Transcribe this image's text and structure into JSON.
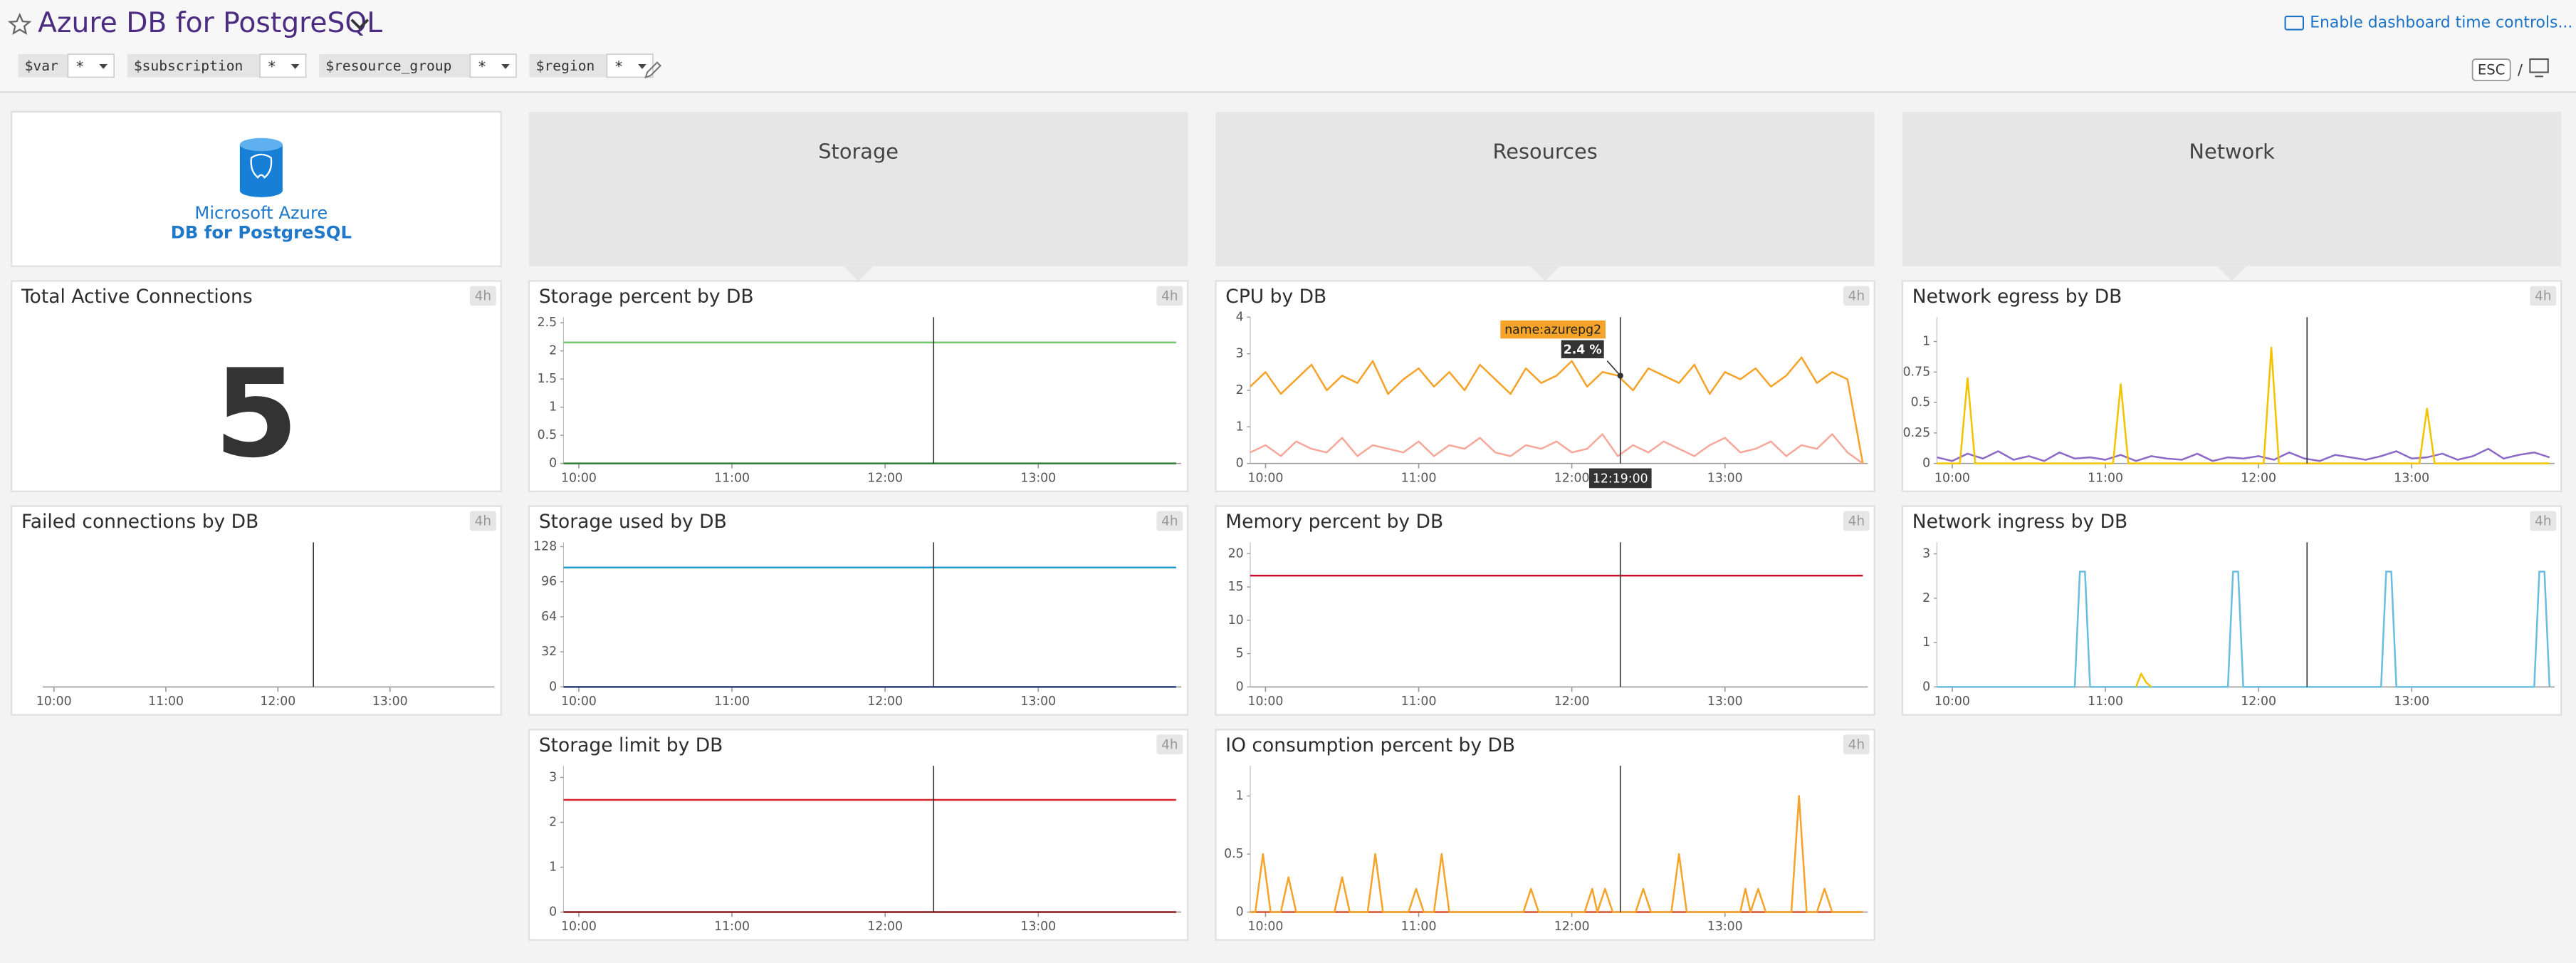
{
  "header": {
    "title": "Azure DB for PostgreSQL",
    "time_controls": "Enable dashboard time controls...",
    "esc": "ESC",
    "slash": "/"
  },
  "variables": [
    {
      "name": "$var",
      "value": "*"
    },
    {
      "name": "$subscription",
      "value": "*"
    },
    {
      "name": "$resource_group",
      "value": "*"
    },
    {
      "name": "$region",
      "value": "*"
    }
  ],
  "logo": {
    "line1": "Microsoft Azure",
    "line2": "DB for PostgreSQL"
  },
  "groups": [
    "Storage",
    "Resources",
    "Network"
  ],
  "widgets": [
    {
      "title": "Total Active Connections",
      "badge": "4h",
      "value": 5
    },
    {
      "title": "Failed connections by DB",
      "badge": "4h",
      "chart": {
        "type": "line",
        "xlim": [
          594,
          836
        ],
        "xticks": [
          {
            "value": 600,
            "label": "10:00"
          },
          {
            "value": 660,
            "label": "11:00"
          },
          {
            "value": 720,
            "label": "12:00"
          },
          {
            "value": 780,
            "label": "13:00"
          }
        ],
        "series": []
      }
    },
    {
      "title": "Storage percent by DB",
      "badge": "4h",
      "chart": {
        "type": "line",
        "xlim": [
          594,
          836
        ],
        "xticks": [
          {
            "value": 600,
            "label": "10:00"
          },
          {
            "value": 660,
            "label": "11:00"
          },
          {
            "value": 720,
            "label": "12:00"
          },
          {
            "value": 780,
            "label": "13:00"
          }
        ],
        "ylim": [
          0,
          2.6
        ],
        "yticks": [
          0,
          0.5,
          1,
          1.5,
          2,
          2.5
        ],
        "series": [
          {
            "color": "#74c86f",
            "x": [
              594,
              834
            ],
            "values": [
              2.15,
              2.15
            ]
          },
          {
            "color": "#2f7d32",
            "x": [
              594,
              834
            ],
            "values": [
              0,
              0
            ]
          }
        ]
      }
    },
    {
      "title": "Storage used by DB",
      "badge": "4h",
      "chart": {
        "type": "line",
        "xlim": [
          594,
          836
        ],
        "xticks": [
          {
            "value": 600,
            "label": "10:00"
          },
          {
            "value": 660,
            "label": "11:00"
          },
          {
            "value": 720,
            "label": "12:00"
          },
          {
            "value": 780,
            "label": "13:00"
          }
        ],
        "ylim": [
          0,
          132
        ],
        "yticks": [
          0,
          32,
          64,
          96,
          128
        ],
        "series": [
          {
            "color": "#1f9bd1",
            "x": [
              594,
              834
            ],
            "values": [
              109,
              109
            ]
          },
          {
            "color": "#2c3e7a",
            "x": [
              594,
              834
            ],
            "values": [
              0,
              0
            ]
          }
        ]
      }
    },
    {
      "title": "Storage limit by DB",
      "badge": "4h",
      "chart": {
        "type": "line",
        "xlim": [
          594,
          836
        ],
        "xticks": [
          {
            "value": 600,
            "label": "10:00"
          },
          {
            "value": 660,
            "label": "11:00"
          },
          {
            "value": 720,
            "label": "12:00"
          },
          {
            "value": 780,
            "label": "13:00"
          }
        ],
        "ylim": [
          0,
          3.26
        ],
        "yticks": [
          0,
          1,
          2,
          3
        ],
        "series": [
          {
            "color": "#d9262b",
            "x": [
              594,
              834
            ],
            "values": [
              2.5,
              2.5
            ]
          },
          {
            "color": "#8a1a1a",
            "x": [
              594,
              834
            ],
            "values": [
              0,
              0
            ]
          }
        ]
      }
    },
    {
      "title": "CPU by DB",
      "badge": "4h",
      "tooltip": {
        "series_name": "name:azurepg2",
        "value": "2.4 %",
        "time": "12:19:00"
      },
      "chart": {
        "type": "line",
        "xlim": [
          594,
          836
        ],
        "xticks": [
          {
            "value": 600,
            "label": "10:00"
          },
          {
            "value": 660,
            "label": "11:00"
          },
          {
            "value": 720,
            "label": "12:00"
          },
          {
            "value": 780,
            "label": "13:00"
          }
        ],
        "ylim": [
          0,
          4
        ],
        "yticks": [
          0,
          1,
          2,
          3,
          4
        ],
        "series": [
          {
            "color": "#f6a99b",
            "x": [
              594,
              600,
              606,
              612,
              618,
              624,
              630,
              636,
              642,
              648,
              654,
              660,
              666,
              672,
              678,
              684,
              690,
              696,
              702,
              708,
              714,
              720,
              726,
              732,
              738,
              744,
              750,
              756,
              762,
              768,
              774,
              780,
              786,
              792,
              798,
              804,
              810,
              816,
              822,
              828,
              834
            ],
            "values": [
              0.3,
              0.5,
              0.2,
              0.6,
              0.4,
              0.3,
              0.7,
              0.2,
              0.5,
              0.4,
              0.3,
              0.6,
              0.2,
              0.5,
              0.4,
              0.7,
              0.3,
              0.2,
              0.5,
              0.4,
              0.6,
              0.3,
              0.4,
              0.8,
              0.2,
              0.5,
              0.3,
              0.6,
              0.4,
              0.2,
              0.5,
              0.7,
              0.3,
              0.4,
              0.6,
              0.2,
              0.5,
              0.4,
              0.8,
              0.3,
              0
            ]
          },
          {
            "color": "#f5a32a",
            "x": [
              594,
              600,
              606,
              612,
              618,
              624,
              630,
              636,
              642,
              648,
              654,
              660,
              666,
              672,
              678,
              684,
              690,
              696,
              702,
              708,
              714,
              720,
              726,
              732,
              738,
              744,
              750,
              756,
              762,
              768,
              774,
              780,
              786,
              792,
              798,
              804,
              810,
              816,
              822,
              828,
              834
            ],
            "values": [
              2.1,
              2.5,
              1.9,
              2.3,
              2.7,
              2.0,
              2.4,
              2.2,
              2.8,
              1.9,
              2.3,
              2.6,
              2.1,
              2.5,
              2.0,
              2.7,
              2.3,
              1.9,
              2.6,
              2.2,
              2.4,
              2.8,
              2.1,
              2.5,
              2.4,
              2.0,
              2.6,
              2.4,
              2.2,
              2.7,
              1.9,
              2.5,
              2.3,
              2.6,
              2.1,
              2.4,
              2.9,
              2.2,
              2.5,
              2.3,
              0
            ]
          }
        ]
      }
    },
    {
      "title": "Memory percent by DB",
      "badge": "4h",
      "chart": {
        "type": "line",
        "xlim": [
          594,
          836
        ],
        "xticks": [
          {
            "value": 600,
            "label": "10:00"
          },
          {
            "value": 660,
            "label": "11:00"
          },
          {
            "value": 720,
            "label": "12:00"
          },
          {
            "value": 780,
            "label": "13:00"
          }
        ],
        "ylim": [
          0,
          21.7
        ],
        "yticks": [
          0,
          5,
          10,
          15,
          20
        ],
        "series": [
          {
            "color": "#c8102e",
            "x": [
              594,
              834
            ],
            "values": [
              16.7,
              16.7
            ]
          }
        ]
      }
    },
    {
      "title": "IO consumption percent by DB",
      "badge": "4h",
      "chart": {
        "type": "line",
        "xlim": [
          594,
          836
        ],
        "xticks": [
          {
            "value": 600,
            "label": "10:00"
          },
          {
            "value": 660,
            "label": "11:00"
          },
          {
            "value": 720,
            "label": "12:00"
          },
          {
            "value": 780,
            "label": "13:00"
          }
        ],
        "ylim": [
          0,
          1.26
        ],
        "yticks": [
          0,
          0.5,
          1
        ],
        "series": [
          {
            "color": "#d9502a",
            "x": [
              594,
              834
            ],
            "values": [
              0,
              0
            ]
          },
          {
            "color": "#f5a32a",
            "x": [
              594,
              596,
              599,
              602,
              606,
              609,
              612,
              627,
              630,
              633,
              640,
              643,
              646,
              656,
              659,
              662,
              666,
              669,
              672,
              701,
              704,
              707,
              725,
              728,
              730,
              733,
              736,
              745,
              748,
              751,
              759,
              762,
              765,
              786,
              788,
              790,
              793,
              796,
              806,
              809,
              812,
              816,
              819,
              822,
              834
            ],
            "values": [
              0,
              0,
              0.5,
              0,
              0,
              0.3,
              0,
              0,
              0.3,
              0,
              0,
              0.5,
              0,
              0,
              0.2,
              0,
              0,
              0.5,
              0,
              0,
              0.2,
              0,
              0,
              0.2,
              0,
              0.2,
              0,
              0,
              0.2,
              0,
              0,
              0.5,
              0,
              0,
              0.2,
              0,
              0.2,
              0,
              0,
              1,
              0,
              0,
              0.2,
              0,
              0
            ]
          }
        ]
      }
    },
    {
      "title": "Network egress by DB",
      "badge": "4h",
      "chart": {
        "type": "line",
        "xlim": [
          594,
          836
        ],
        "xticks": [
          {
            "value": 600,
            "label": "10:00"
          },
          {
            "value": 660,
            "label": "11:00"
          },
          {
            "value": 720,
            "label": "12:00"
          },
          {
            "value": 780,
            "label": "13:00"
          }
        ],
        "ylim": [
          0,
          1.2
        ],
        "yticks": [
          0,
          0.25,
          0.5,
          0.75,
          1
        ],
        "series": [
          {
            "color": "#8c6bc8",
            "x": [
              594,
              600,
              606,
              612,
              618,
              624,
              630,
              636,
              642,
              648,
              654,
              660,
              666,
              672,
              678,
              684,
              690,
              696,
              702,
              708,
              714,
              720,
              726,
              732,
              738,
              744,
              750,
              756,
              762,
              768,
              774,
              780,
              786,
              792,
              798,
              804,
              810,
              816,
              822,
              828,
              834
            ],
            "values": [
              0.05,
              0.02,
              0.08,
              0.04,
              0.1,
              0.03,
              0.06,
              0.02,
              0.09,
              0.04,
              0.05,
              0.03,
              0.07,
              0.02,
              0.06,
              0.04,
              0.03,
              0.08,
              0.02,
              0.05,
              0.04,
              0.06,
              0.03,
              0.09,
              0.04,
              0.02,
              0.07,
              0.05,
              0.03,
              0.06,
              0.1,
              0.04,
              0.05,
              0.08,
              0.03,
              0.06,
              0.12,
              0.04,
              0.07,
              0.09,
              0.05
            ]
          },
          {
            "color": "#f2c400",
            "x": [
              594,
              603,
              606,
              609,
              663,
              666,
              669,
              722,
              725,
              728,
              783,
              786,
              789,
              834
            ],
            "values": [
              0,
              0,
              0.7,
              0,
              0,
              0.65,
              0,
              0,
              0.95,
              0,
              0,
              0.45,
              0,
              0
            ]
          }
        ]
      }
    },
    {
      "title": "Network ingress by DB",
      "badge": "4h",
      "chart": {
        "type": "line",
        "xlim": [
          594,
          836
        ],
        "xticks": [
          {
            "value": 600,
            "label": "10:00"
          },
          {
            "value": 660,
            "label": "11:00"
          },
          {
            "value": 720,
            "label": "12:00"
          },
          {
            "value": 780,
            "label": "13:00"
          }
        ],
        "ylim": [
          0,
          3.26
        ],
        "yticks": [
          0,
          1,
          2,
          3
        ],
        "series": [
          {
            "color": "#6bbde0",
            "x": [
              594,
              648,
              650,
              652,
              654,
              708,
              710,
              712,
              714,
              768,
              770,
              772,
              774,
              828,
              830,
              832,
              834
            ],
            "values": [
              0,
              0,
              2.6,
              2.6,
              0,
              0,
              2.6,
              2.6,
              0,
              0,
              2.6,
              2.6,
              0,
              0,
              2.6,
              2.6,
              0
            ]
          },
          {
            "color": "#f2c400",
            "x": [
              672,
              674,
              676,
              678
            ],
            "values": [
              0,
              0.3,
              0.1,
              0
            ]
          }
        ]
      }
    }
  ]
}
